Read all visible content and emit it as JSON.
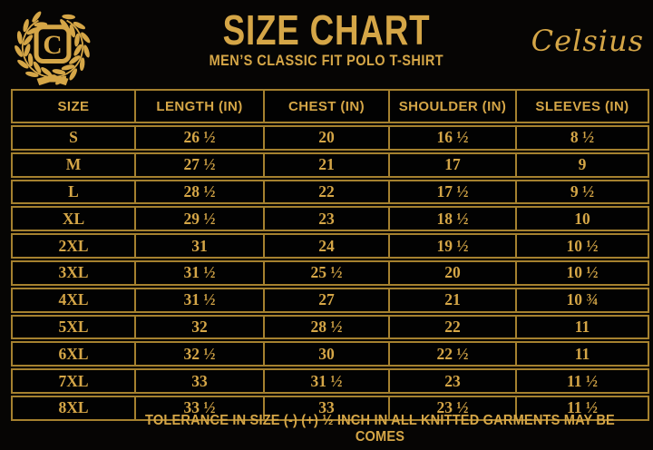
{
  "colors": {
    "gold": "#D5A647",
    "border": "#A5812F",
    "background": "#060504"
  },
  "logo": {
    "letter": "C"
  },
  "brand": {
    "wordmark": "Celsius"
  },
  "header": {
    "title": "SIZE CHART",
    "subtitle": "MEN’S CLASSIC FIT POLO T-SHIRT"
  },
  "chart_data": {
    "type": "table",
    "title": "SIZE CHART",
    "subtitle": "MEN’S CLASSIC FIT POLO T-SHIRT",
    "columns": [
      "SIZE",
      "LENGTH (IN)",
      "CHEST (IN)",
      "SHOULDER (IN)",
      "SLEEVES (IN)"
    ],
    "rows": [
      [
        "S",
        "26 ½",
        "20",
        "16 ½",
        "8 ½"
      ],
      [
        "M",
        "27 ½",
        "21",
        "17",
        "9"
      ],
      [
        "L",
        "28 ½",
        "22",
        "17 ½",
        "9 ½"
      ],
      [
        "XL",
        "29 ½",
        "23",
        "18 ½",
        "10"
      ],
      [
        "2XL",
        "31",
        "24",
        "19 ½",
        "10 ½"
      ],
      [
        "3XL",
        "31 ½",
        "25 ½",
        "20",
        "10 ½"
      ],
      [
        "4XL",
        "31 ½",
        "27",
        "21",
        "10 ¾"
      ],
      [
        "5XL",
        "32",
        "28 ½",
        "22",
        "11"
      ],
      [
        "6XL",
        "32 ½",
        "30",
        "22 ½",
        "11"
      ],
      [
        "7XL",
        "33",
        "31 ½",
        "23",
        "11 ½"
      ],
      [
        "8XL",
        "33 ½",
        "33",
        "23 ½",
        "11 ½"
      ]
    ]
  },
  "footer": {
    "note": "TOLERANCE IN SIZE (-) (+) ½ INCH IN ALL KNITTED GARMENTS MAY BE COMES"
  }
}
